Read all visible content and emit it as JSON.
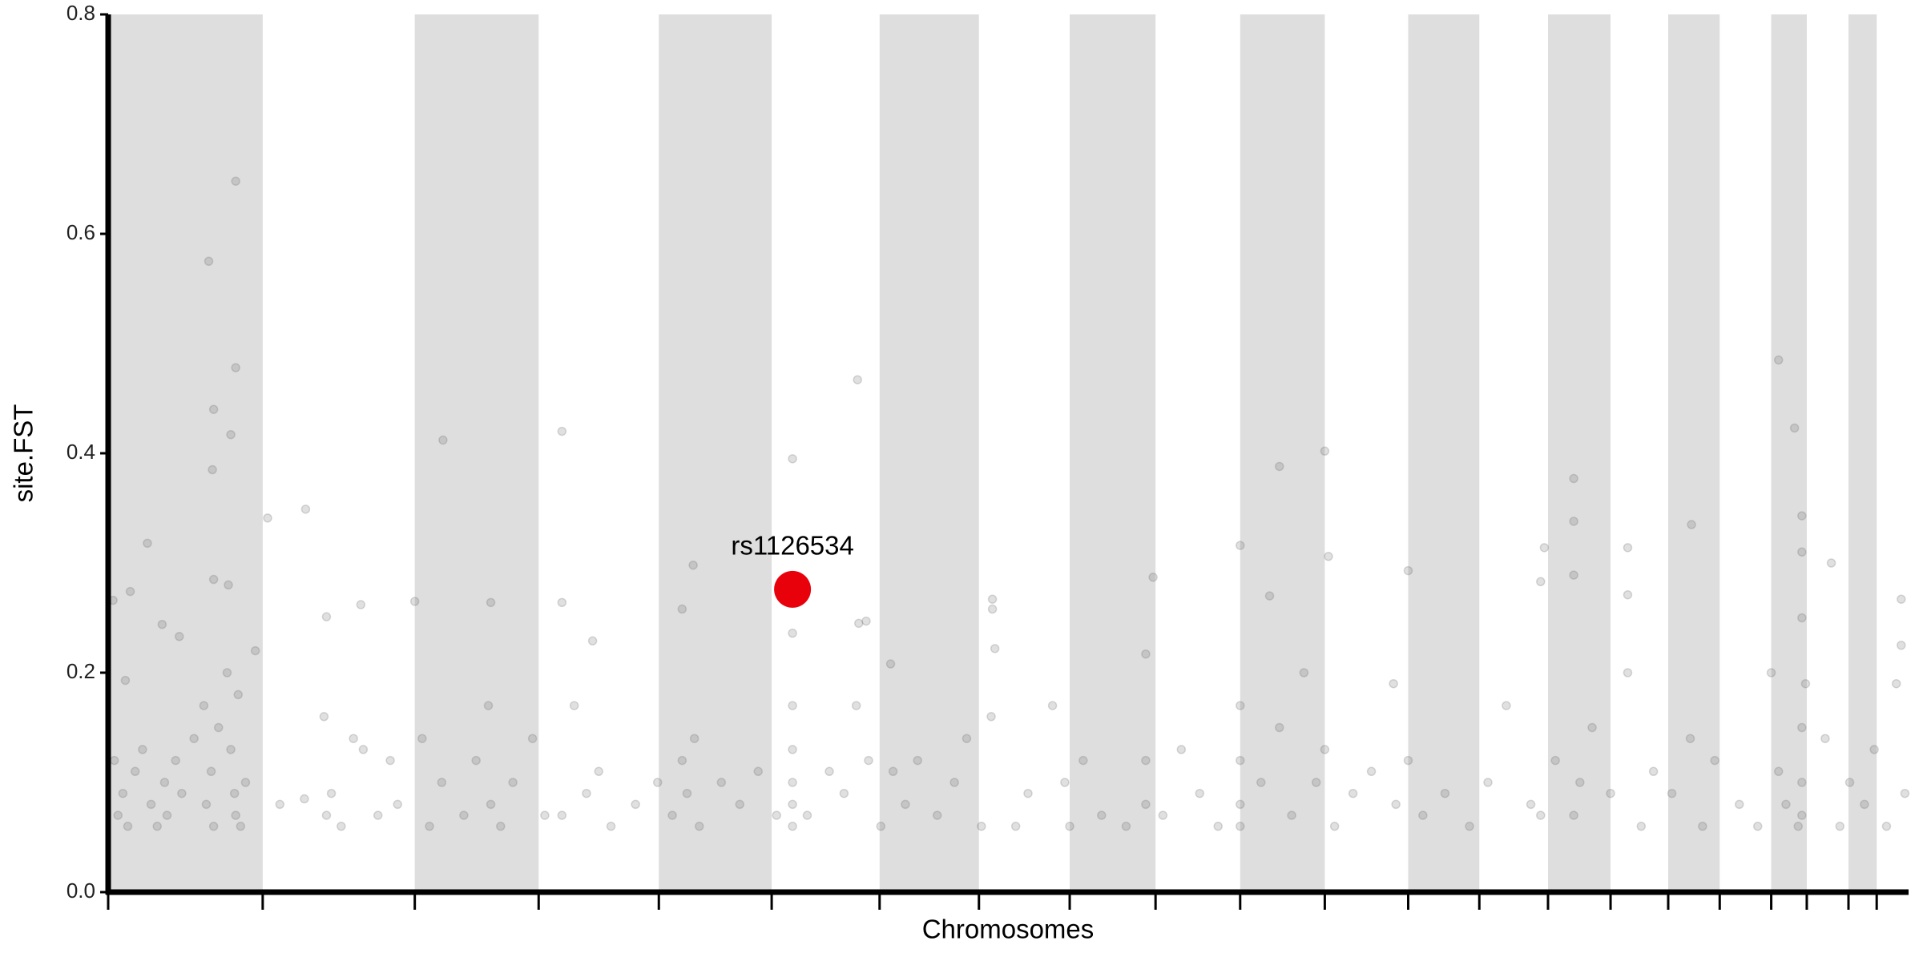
{
  "chart_data": {
    "type": "scatter",
    "xlabel": "Chromosomes",
    "ylabel": "site.FST",
    "xlim": [
      0,
      1468
    ],
    "ylim": [
      0,
      0.8
    ],
    "xticks": [
      0,
      126,
      250,
      351,
      449,
      541,
      629,
      710,
      784,
      854,
      923,
      992,
      1060,
      1118,
      1174,
      1225,
      1272,
      1314,
      1356,
      1385,
      1419,
      1442
    ],
    "yticks": [
      {
        "value": 0,
        "label": "0.0"
      },
      0.2,
      0.4,
      0.6,
      0.8
    ],
    "shade_alternate": true,
    "shade_color": "#dedede",
    "series": [
      {
        "color": "#666666",
        "opacity": 0.2,
        "x": [
          82,
          104,
          104,
          86,
          100,
          85,
          86,
          98,
          32,
          18,
          4,
          14,
          44,
          58,
          130,
          161,
          178,
          206,
          250,
          273,
          312,
          370,
          370,
          395,
          477,
          468,
          558,
          558,
          611,
          612,
          618,
          638,
          721,
          721,
          723,
          852,
          846,
          923,
          947,
          955,
          992,
          995,
          1060,
          1168,
          1171,
          1195,
          1195,
          1195,
          1239,
          1239,
          1291,
          1362,
          1375,
          1381,
          1381,
          1405,
          1462,
          1462,
          5,
          8,
          12,
          16,
          22,
          28,
          35,
          40,
          46,
          48,
          55,
          60,
          70,
          78,
          80,
          84,
          86,
          90,
          97,
          100,
          103,
          104,
          106,
          108,
          112,
          120,
          140,
          160,
          176,
          178,
          182,
          190,
          200,
          208,
          220,
          230,
          236,
          256,
          262,
          272,
          290,
          300,
          310,
          312,
          320,
          330,
          346,
          356,
          370,
          380,
          390,
          400,
          410,
          430,
          448,
          460,
          468,
          472,
          478,
          482,
          500,
          515,
          530,
          545,
          558,
          558,
          558,
          558,
          558,
          570,
          588,
          600,
          610,
          620,
          630,
          640,
          650,
          660,
          676,
          690,
          700,
          712,
          720,
          740,
          750,
          770,
          780,
          784,
          795,
          810,
          830,
          846,
          846,
          860,
          875,
          890,
          905,
          923,
          923,
          923,
          923,
          940,
          955,
          965,
          975,
          985,
          992,
          1000,
          1015,
          1030,
          1048,
          1050,
          1060,
          1072,
          1090,
          1110,
          1125,
          1140,
          1160,
          1168,
          1180,
          1195,
          1200,
          1210,
          1225,
          1239,
          1250,
          1260,
          1275,
          1290,
          1300,
          1310,
          1330,
          1345,
          1356,
          1362,
          1368,
          1378,
          1381,
          1381,
          1381,
          1381,
          1384,
          1400,
          1412,
          1420,
          1432,
          1440,
          1450,
          1458,
          1465
        ],
        "values": [
          0.575,
          0.648,
          0.478,
          0.44,
          0.417,
          0.385,
          0.285,
          0.28,
          0.318,
          0.274,
          0.266,
          0.193,
          0.244,
          0.233,
          0.341,
          0.349,
          0.251,
          0.262,
          0.265,
          0.412,
          0.264,
          0.42,
          0.264,
          0.229,
          0.298,
          0.258,
          0.395,
          0.236,
          0.467,
          0.245,
          0.247,
          0.208,
          0.267,
          0.258,
          0.222,
          0.287,
          0.217,
          0.316,
          0.27,
          0.388,
          0.402,
          0.306,
          0.293,
          0.283,
          0.314,
          0.377,
          0.338,
          0.289,
          0.314,
          0.271,
          0.335,
          0.485,
          0.423,
          0.343,
          0.31,
          0.3,
          0.267,
          0.225,
          0.12,
          0.07,
          0.09,
          0.06,
          0.11,
          0.13,
          0.08,
          0.06,
          0.1,
          0.07,
          0.12,
          0.09,
          0.14,
          0.17,
          0.08,
          0.11,
          0.06,
          0.15,
          0.2,
          0.13,
          0.09,
          0.07,
          0.18,
          0.06,
          0.1,
          0.22,
          0.08,
          0.085,
          0.16,
          0.07,
          0.09,
          0.06,
          0.14,
          0.13,
          0.07,
          0.12,
          0.08,
          0.14,
          0.06,
          0.1,
          0.07,
          0.12,
          0.17,
          0.08,
          0.06,
          0.1,
          0.14,
          0.07,
          0.07,
          0.17,
          0.09,
          0.11,
          0.06,
          0.08,
          0.1,
          0.07,
          0.12,
          0.09,
          0.14,
          0.06,
          0.1,
          0.08,
          0.11,
          0.07,
          0.17,
          0.13,
          0.1,
          0.08,
          0.06,
          0.07,
          0.11,
          0.09,
          0.17,
          0.12,
          0.06,
          0.11,
          0.08,
          0.12,
          0.07,
          0.1,
          0.14,
          0.06,
          0.16,
          0.06,
          0.09,
          0.17,
          0.1,
          0.06,
          0.12,
          0.07,
          0.06,
          0.12,
          0.08,
          0.07,
          0.13,
          0.09,
          0.06,
          0.17,
          0.12,
          0.08,
          0.06,
          0.1,
          0.15,
          0.07,
          0.2,
          0.1,
          0.13,
          0.06,
          0.09,
          0.11,
          0.19,
          0.08,
          0.12,
          0.07,
          0.09,
          0.06,
          0.1,
          0.17,
          0.08,
          0.07,
          0.12,
          0.07,
          0.1,
          0.15,
          0.09,
          0.2,
          0.06,
          0.11,
          0.09,
          0.14,
          0.06,
          0.12,
          0.08,
          0.06,
          0.2,
          0.11,
          0.08,
          0.06,
          0.25,
          0.15,
          0.1,
          0.07,
          0.19,
          0.14,
          0.06,
          0.1,
          0.08,
          0.13,
          0.06,
          0.19,
          0.09
        ]
      },
      {
        "color": "#e8000b",
        "opacity": 1,
        "highlight": true,
        "x": [
          558
        ],
        "values": [
          0.276
        ],
        "label": "rs1126534"
      }
    ]
  }
}
